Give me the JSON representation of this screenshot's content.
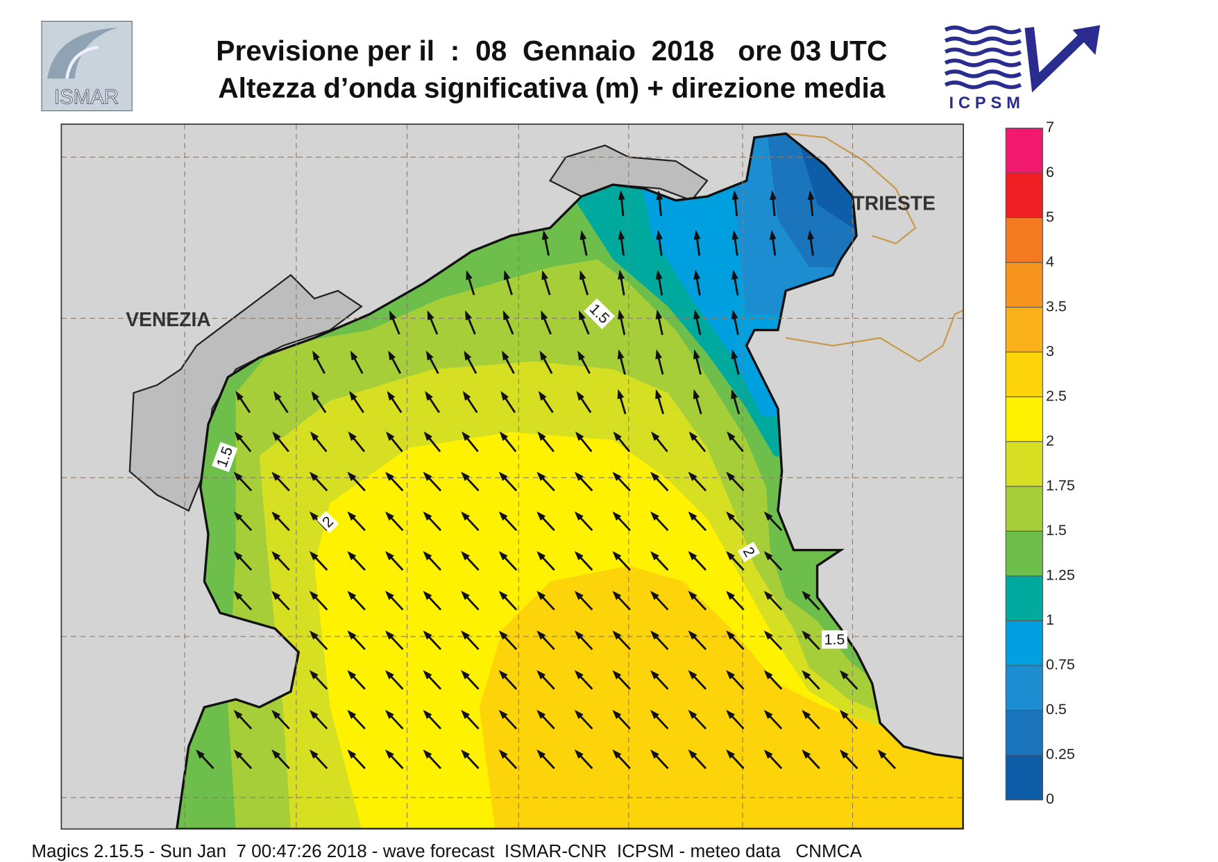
{
  "header": {
    "title_line1": "Previsione per il  :  08  Gennaio  2018   ore 03 UTC",
    "title_line2": "Altezza d’onda significativa (m) + direzione media",
    "logo_left": "ISMAR",
    "logo_right": "ICPSM"
  },
  "map": {
    "places": [
      "VENEZIA",
      "TRIESTE"
    ],
    "contour_labels": [
      "1.5",
      "1.5",
      "2",
      "2",
      "1.5"
    ]
  },
  "colorbar": {
    "ticks": [
      0,
      0.25,
      0.5,
      0.75,
      1,
      1.25,
      1.5,
      1.75,
      2,
      2.5,
      3,
      3.5,
      4,
      5,
      6,
      7
    ],
    "colors": [
      "#0e5da8",
      "#1a75bc",
      "#1c8dd0",
      "#00a0e0",
      "#00a99d",
      "#6dbe4b",
      "#a6ce39",
      "#d7df23",
      "#fff200",
      "#fdd40a",
      "#fbb21a",
      "#f7941d",
      "#f47a20",
      "#ee2024",
      "#f0196e"
    ]
  },
  "footer": "Magics 2.15.5 - Sun Jan  7 00:47:26 2018 - wave forecast  ISMAR-CNR  ICPSM - meteo data   CNMCA"
}
